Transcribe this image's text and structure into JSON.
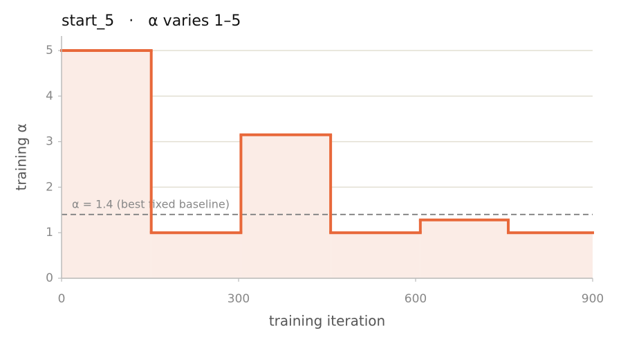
{
  "chart_data": {
    "type": "step",
    "title": "start_5   ·   α varies 1–5",
    "x_label": "training iteration",
    "y_label": "training α",
    "x": [
      0,
      152,
      304,
      456,
      608,
      757
    ],
    "values": [
      5,
      1,
      3.15,
      1,
      1.28,
      1
    ],
    "color": "#e8683a",
    "fill_color": "#fbece6",
    "reference_line": {
      "value": 1.4,
      "label": "α = 1.4 (best fixed baseline)",
      "color": "#888888"
    },
    "xlim": [
      0,
      900
    ],
    "ylim": [
      0,
      5.32
    ],
    "xticks": [
      0,
      300,
      600,
      900
    ],
    "yticks": [
      0,
      1,
      2,
      3,
      4,
      5
    ],
    "grid": true
  }
}
